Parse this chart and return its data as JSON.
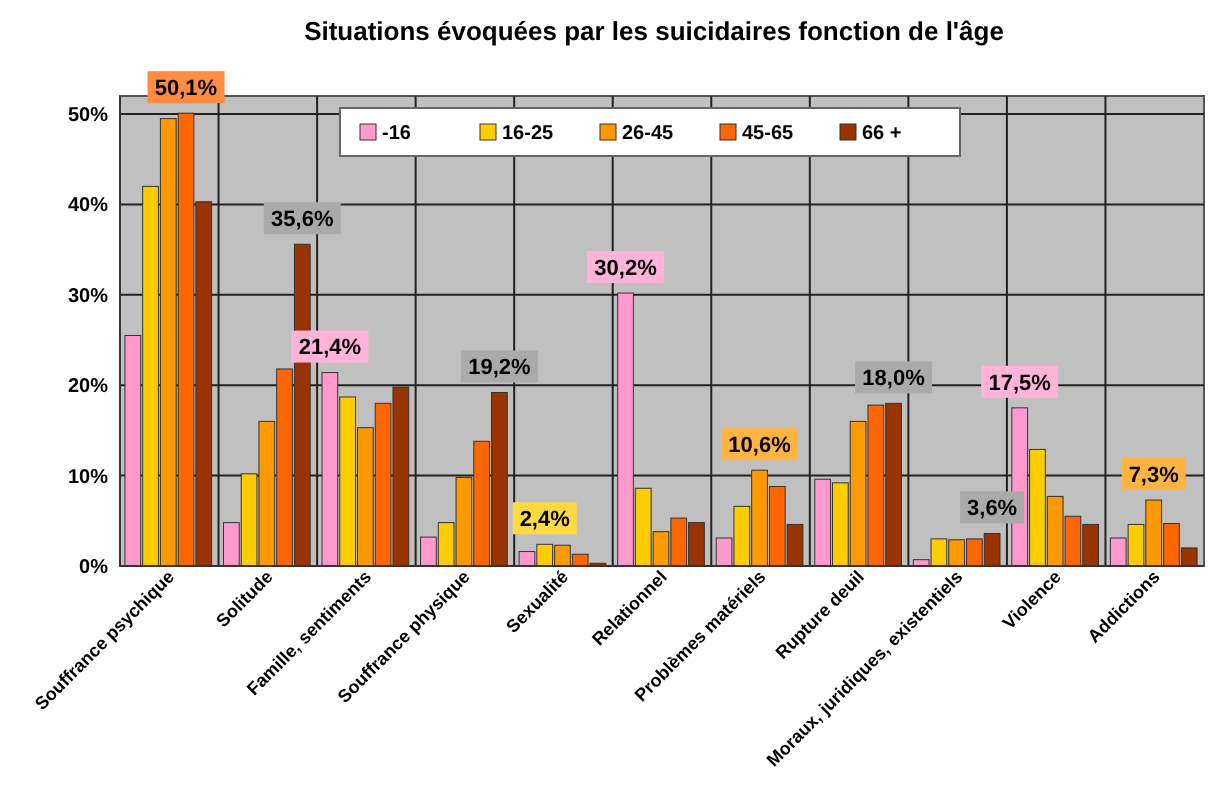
{
  "chart_data": {
    "type": "bar",
    "title": "Situations évoquées par les suicidaires fonction de l'âge",
    "categories": [
      "Souffrance psychique",
      "Solitude",
      "Famille, sentiments",
      "Souffrance physique",
      "Sexualité",
      "Relationnel",
      "Problèmes matériels",
      "Rupture deuil",
      "Moraux, juridiques, existentiels",
      "Violence",
      "Addictions"
    ],
    "series": [
      {
        "name": "-16",
        "color": "#ff99cc",
        "values": [
          25.5,
          4.8,
          21.4,
          3.2,
          1.6,
          30.2,
          3.1,
          9.6,
          0.7,
          17.5,
          3.1
        ],
        "value_labels": [
          null,
          null,
          "21,4%",
          null,
          null,
          "30,2%",
          null,
          null,
          null,
          "17,5%",
          null
        ]
      },
      {
        "name": "16-25",
        "color": "#ffcc00",
        "values": [
          42,
          10.2,
          18.7,
          4.8,
          2.4,
          8.6,
          6.6,
          9.2,
          3.0,
          12.9,
          4.6
        ],
        "value_labels": [
          null,
          null,
          null,
          null,
          "2,4%",
          null,
          null,
          null,
          null,
          null,
          null
        ]
      },
      {
        "name": "26-45",
        "color": "#ff9900",
        "values": [
          49.5,
          16,
          15.3,
          9.8,
          2.3,
          3.8,
          10.6,
          16,
          2.9,
          7.7,
          7.3
        ],
        "value_labels": [
          null,
          null,
          null,
          null,
          null,
          null,
          "10,6%",
          null,
          null,
          null,
          "7,3%"
        ]
      },
      {
        "name": "45-65",
        "color": "#ff6600",
        "values": [
          50.1,
          21.8,
          18,
          13.8,
          1.3,
          5.3,
          8.8,
          17.8,
          3.0,
          5.5,
          4.7
        ],
        "value_labels": [
          "50,1%",
          null,
          null,
          null,
          null,
          null,
          null,
          null,
          null,
          null,
          null
        ]
      },
      {
        "name": "66 +",
        "color": "#993300",
        "values": [
          40.3,
          35.6,
          19.8,
          19.2,
          0.3,
          4.8,
          4.6,
          18.0,
          3.6,
          4.6,
          2.0
        ],
        "value_labels": [
          null,
          "35,6%",
          null,
          "19,2%",
          null,
          null,
          null,
          "18,0%",
          "3,6%",
          null,
          null
        ]
      }
    ],
    "ylim": [
      0,
      52
    ],
    "yticks": [
      {
        "value": 0,
        "label": "0%"
      },
      {
        "value": 10,
        "label": "10%"
      },
      {
        "value": 20,
        "label": "20%"
      },
      {
        "value": 30,
        "label": "30%"
      },
      {
        "value": 40,
        "label": "40%"
      },
      {
        "value": 50,
        "label": "50%"
      }
    ],
    "grid": true,
    "legend": "top"
  }
}
